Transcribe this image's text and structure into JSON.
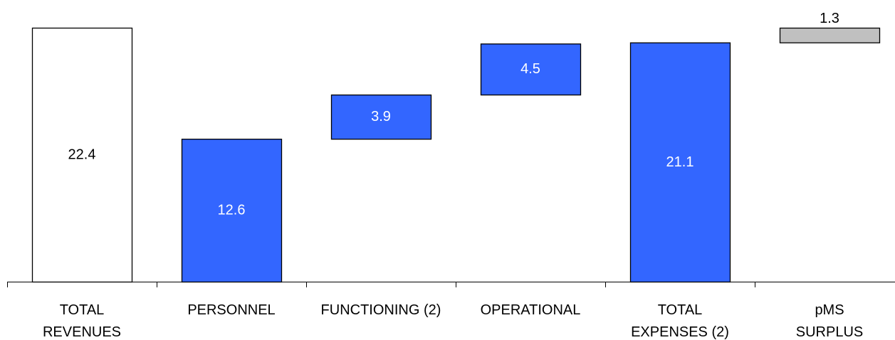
{
  "chart_data": {
    "type": "bar",
    "variant": "waterfall",
    "title": "",
    "xlabel": "",
    "ylabel": "",
    "ylim": [
      0,
      22.4
    ],
    "grid": false,
    "legend": "none",
    "categories": [
      [
        "TOTAL",
        "REVENUES"
      ],
      [
        "PERSONNEL"
      ],
      [
        "FUNCTIONING (2)"
      ],
      [
        "OPERATIONAL"
      ],
      [
        "TOTAL",
        "EXPENSES (2)"
      ],
      [
        "pMS",
        "SURPLUS"
      ]
    ],
    "bars": [
      {
        "label": "22.4",
        "value": 22.4,
        "base": 0,
        "fill": "#ffffff",
        "text_color": "#000000",
        "label_position": "inside"
      },
      {
        "label": "12.6",
        "value": 12.6,
        "base": 0,
        "fill": "#3366ff",
        "text_color": "#ffffff",
        "label_position": "inside"
      },
      {
        "label": "3.9",
        "value": 3.9,
        "base": 12.6,
        "fill": "#3366ff",
        "text_color": "#ffffff",
        "label_position": "inside"
      },
      {
        "label": "4.5",
        "value": 4.5,
        "base": 16.5,
        "fill": "#3366ff",
        "text_color": "#ffffff",
        "label_position": "inside"
      },
      {
        "label": "21.1",
        "value": 21.1,
        "base": 0,
        "fill": "#3366ff",
        "text_color": "#ffffff",
        "label_position": "inside"
      },
      {
        "label": "1.3",
        "value": 1.3,
        "base": 21.1,
        "fill": "#c0c0c0",
        "text_color": "#000000",
        "label_position": "above"
      }
    ],
    "colors": {
      "expense": "#3366ff",
      "surplus": "#c0c0c0",
      "revenue": "#ffffff",
      "outline": "#000000"
    }
  }
}
